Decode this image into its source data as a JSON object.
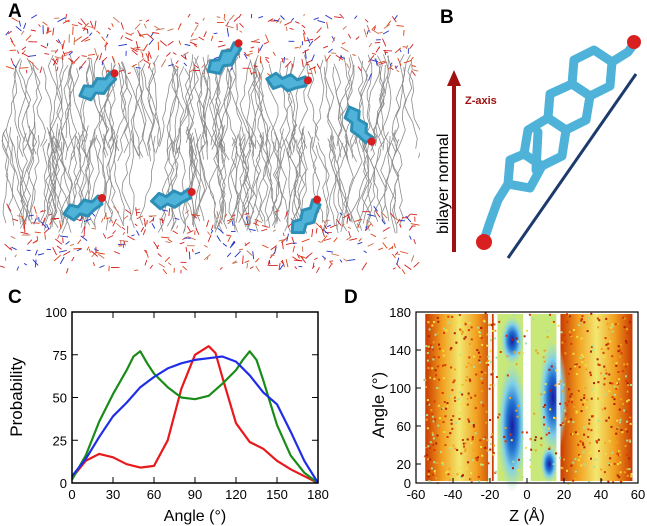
{
  "panels": {
    "a": {
      "label": "A"
    },
    "b": {
      "label": "B",
      "z_axis_label": "Z-axis",
      "normal_label": "bilayer normal"
    },
    "c": {
      "label": "C"
    },
    "d": {
      "label": "D"
    }
  },
  "colors": {
    "red": "#e8191c",
    "green": "#1a8c1a",
    "blue": "#1f2ee6",
    "cholesterol": "#4fb3d9",
    "lipid": "#8c8c8c",
    "arrow": "#a01010",
    "tilt_line": "#1c3a6b"
  },
  "chart_data": [
    {
      "type": "line",
      "panel": "C",
      "xlabel": "Angle (°)",
      "ylabel": "Probability",
      "xlim": [
        0,
        180
      ],
      "ylim": [
        0,
        100
      ],
      "xticks": [
        0,
        30,
        60,
        90,
        120,
        150,
        180
      ],
      "yticks": [
        0,
        25,
        50,
        75,
        100
      ],
      "series": [
        {
          "color": "red",
          "x": [
            0,
            10,
            20,
            30,
            40,
            50,
            60,
            70,
            80,
            90,
            100,
            105,
            110,
            120,
            130,
            140,
            150,
            160,
            170,
            180
          ],
          "y": [
            3,
            13,
            17,
            15,
            11,
            9,
            10,
            25,
            55,
            75,
            80,
            76,
            62,
            35,
            24,
            20,
            13,
            8,
            4,
            0
          ]
        },
        {
          "color": "green",
          "x": [
            0,
            10,
            20,
            30,
            40,
            45,
            50,
            55,
            60,
            70,
            80,
            90,
            100,
            110,
            120,
            125,
            130,
            135,
            140,
            150,
            160,
            170,
            180
          ],
          "y": [
            2,
            16,
            36,
            52,
            66,
            74,
            77,
            70,
            64,
            56,
            50,
            49,
            51,
            58,
            66,
            72,
            77,
            72,
            60,
            34,
            16,
            6,
            0
          ]
        },
        {
          "color": "blue",
          "x": [
            0,
            10,
            20,
            30,
            40,
            50,
            60,
            70,
            80,
            90,
            100,
            110,
            120,
            130,
            140,
            150,
            160,
            170,
            180
          ],
          "y": [
            4,
            14,
            27,
            39,
            47,
            56,
            62,
            67,
            70,
            72,
            73,
            74,
            71,
            63,
            53,
            46,
            30,
            13,
            0
          ]
        }
      ]
    },
    {
      "type": "heatmap",
      "panel": "D",
      "xlabel": "Z (Å)",
      "ylabel": "Angle (°)",
      "xlim": [
        -60,
        60
      ],
      "ylim": [
        0,
        180
      ],
      "xticks": [
        -60,
        -40,
        -20,
        0,
        20,
        40,
        60
      ],
      "yticks": [
        0,
        20,
        60,
        100,
        140,
        180
      ]
    }
  ]
}
